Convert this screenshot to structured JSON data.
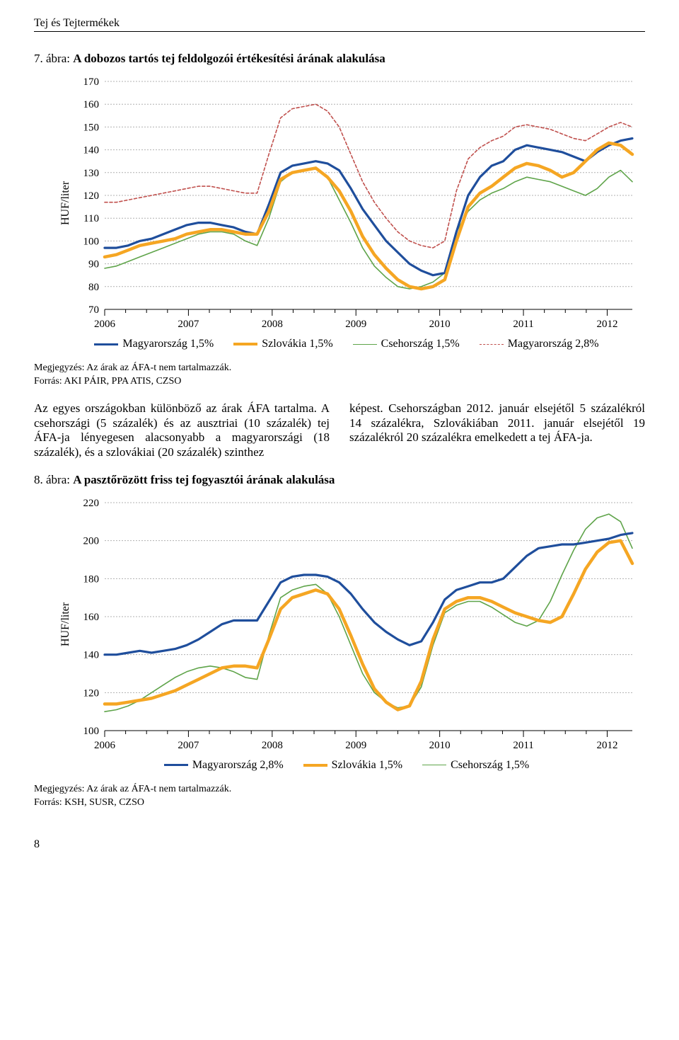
{
  "header": "Tej és Tejtermékek",
  "page_number": "8",
  "fig7": {
    "title_prefix": "7. ábra: ",
    "title": "A dobozos tartós tej feldolgozói értékesítési árának alakulása",
    "ylabel": "HUF/liter",
    "yticks": [
      70,
      80,
      90,
      100,
      110,
      120,
      130,
      140,
      150,
      160,
      170
    ],
    "ylim": [
      70,
      170
    ],
    "xticks": [
      "2006",
      "2007",
      "2008",
      "2009",
      "2010",
      "2011",
      "2012"
    ],
    "colors": {
      "hu15": "#1f4e9c",
      "sk": "#f5a623",
      "cz": "#5fa44a",
      "hu28": "#c0504d",
      "grid": "#b0b0b0",
      "axis": "#000000"
    },
    "line_widths": {
      "hu15": 3.2,
      "sk": 4.5,
      "cz": 1.6,
      "hu28": 1.6
    },
    "dash": {
      "hu28": "4 3"
    },
    "legend": [
      {
        "label": "Magyarország 1,5%",
        "color": "#1f4e9c",
        "width": 3.2
      },
      {
        "label": "Szlovákia 1,5%",
        "color": "#f5a623",
        "width": 4.5
      },
      {
        "label": "Csehország 1,5%",
        "color": "#5fa44a",
        "width": 1.6
      },
      {
        "label": "Magyarország 2,8%",
        "color": "#c0504d",
        "width": 1.6,
        "dash": "4 3"
      }
    ],
    "series": {
      "hu15": [
        97,
        97,
        98,
        100,
        101,
        103,
        105,
        107,
        108,
        108,
        107,
        106,
        104,
        103,
        116,
        130,
        133,
        134,
        135,
        134,
        131,
        123,
        114,
        107,
        100,
        95,
        90,
        87,
        85,
        86,
        104,
        120,
        128,
        133,
        135,
        140,
        142,
        141,
        140,
        139,
        137,
        135,
        139,
        142,
        144,
        145
      ],
      "sk": [
        93,
        94,
        96,
        98,
        99,
        100,
        101,
        103,
        104,
        105,
        105,
        104,
        103,
        103,
        113,
        127,
        130,
        131,
        132,
        128,
        122,
        113,
        102,
        94,
        88,
        83,
        80,
        79,
        80,
        83,
        100,
        115,
        121,
        124,
        128,
        132,
        134,
        133,
        131,
        128,
        130,
        135,
        140,
        143,
        142,
        138
      ],
      "cz": [
        88,
        89,
        91,
        93,
        95,
        97,
        99,
        101,
        103,
        104,
        104,
        103,
        100,
        98,
        110,
        126,
        130,
        131,
        132,
        128,
        118,
        108,
        97,
        89,
        84,
        80,
        79,
        80,
        82,
        86,
        104,
        113,
        118,
        121,
        123,
        126,
        128,
        127,
        126,
        124,
        122,
        120,
        123,
        128,
        131,
        126
      ],
      "hu28": [
        117,
        117,
        118,
        119,
        120,
        121,
        122,
        123,
        124,
        124,
        123,
        122,
        121,
        121,
        138,
        154,
        158,
        159,
        160,
        157,
        150,
        138,
        126,
        117,
        110,
        104,
        100,
        98,
        97,
        100,
        122,
        136,
        141,
        144,
        146,
        150,
        151,
        150,
        149,
        147,
        145,
        144,
        147,
        150,
        152,
        150
      ]
    }
  },
  "note1_a": "Megjegyzés: Az árak az ÁFA-t nem tartalmazzák.",
  "note1_b": "Forrás: AKI PÁIR, PPA ATIS, CZSO",
  "body_left": "Az egyes országokban különböző az árak ÁFA tartalma. A csehországi (5 százalék) és az ausztriai (10 százalék) tej ÁFA-ja lényegesen alacsonyabb a magyarországi (18 százalék), és a szlovákiai (20 százalék) szinthez",
  "body_right": "képest. Csehországban 2012. január elsejétől 5 százalékról 14 százalékra, Szlovákiában 2011. január elsejétől 19 százalékról 20 százalékra emelkedett a tej ÁFA-ja.",
  "fig8": {
    "title_prefix": "8. ábra: ",
    "title": "A pasztőrözött friss tej fogyasztói árának alakulása",
    "ylabel": "HUF/liter",
    "yticks": [
      100,
      120,
      140,
      160,
      180,
      200,
      220
    ],
    "ylim": [
      100,
      220
    ],
    "xticks": [
      "2006",
      "2007",
      "2008",
      "2009",
      "2010",
      "2011",
      "2012"
    ],
    "colors": {
      "hu28": "#1f4e9c",
      "sk": "#f5a623",
      "cz": "#5fa44a",
      "grid": "#b0b0b0",
      "axis": "#000000"
    },
    "line_widths": {
      "hu28": 3.2,
      "sk": 4.5,
      "cz": 1.6
    },
    "legend": [
      {
        "label": "Magyarország 2,8%",
        "color": "#1f4e9c",
        "width": 3.2
      },
      {
        "label": "Szlovákia 1,5%",
        "color": "#f5a623",
        "width": 4.5
      },
      {
        "label": "Csehország 1,5%",
        "color": "#5fa44a",
        "width": 1.6
      }
    ],
    "series": {
      "hu28": [
        140,
        140,
        141,
        142,
        141,
        142,
        143,
        145,
        148,
        152,
        156,
        158,
        158,
        158,
        168,
        178,
        181,
        182,
        182,
        181,
        178,
        172,
        164,
        157,
        152,
        148,
        145,
        147,
        157,
        169,
        174,
        176,
        178,
        178,
        180,
        186,
        192,
        196,
        197,
        198,
        198,
        199,
        200,
        201,
        203,
        204
      ],
      "sk": [
        114,
        114,
        115,
        116,
        117,
        119,
        121,
        124,
        127,
        130,
        133,
        134,
        134,
        133,
        148,
        164,
        170,
        172,
        174,
        172,
        164,
        150,
        135,
        122,
        115,
        111,
        113,
        126,
        148,
        164,
        168,
        170,
        170,
        168,
        165,
        162,
        160,
        158,
        157,
        160,
        172,
        185,
        194,
        199,
        200,
        188
      ],
      "cz": [
        110,
        111,
        113,
        116,
        120,
        124,
        128,
        131,
        133,
        134,
        133,
        131,
        128,
        127,
        150,
        170,
        174,
        176,
        177,
        172,
        160,
        145,
        130,
        120,
        115,
        112,
        113,
        123,
        145,
        162,
        166,
        168,
        168,
        165,
        161,
        157,
        155,
        158,
        168,
        182,
        195,
        206,
        212,
        214,
        210,
        196
      ]
    }
  },
  "note2_a": "Megjegyzés: Az árak az ÁFA-t nem tartalmazzák.",
  "note2_b": "Forrás: KSH, SUSR, CZSO"
}
